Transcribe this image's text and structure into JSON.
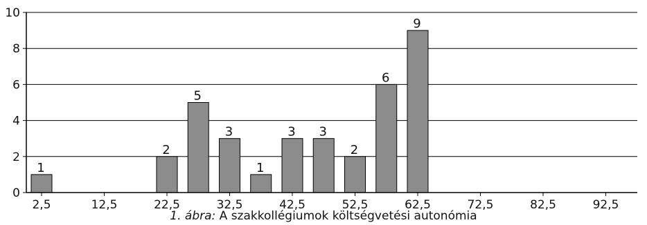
{
  "chart_data": {
    "type": "bar",
    "x_tick_labels": [
      "2,5",
      "12,5",
      "22,5",
      "32,5",
      "42,5",
      "52,5",
      "62,5",
      "72,5",
      "82,5",
      "92,5"
    ],
    "y_tick_labels": [
      "0",
      "2",
      "4",
      "6",
      "8",
      "10"
    ],
    "ylim": [
      0,
      10
    ],
    "grid": true,
    "bar_color": "#8c8c8c",
    "bars": [
      {
        "x": 2.5,
        "value": 1,
        "label": "1"
      },
      {
        "x": 22.5,
        "value": 2,
        "label": "2"
      },
      {
        "x": 27.5,
        "value": 5,
        "label": "5"
      },
      {
        "x": 32.5,
        "value": 3,
        "label": "3"
      },
      {
        "x": 37.5,
        "value": 1,
        "label": "1"
      },
      {
        "x": 42.5,
        "value": 3,
        "label": "3"
      },
      {
        "x": 47.5,
        "value": 3,
        "label": "3"
      },
      {
        "x": 52.5,
        "value": 2,
        "label": "2"
      },
      {
        "x": 57.5,
        "value": 6,
        "label": "6"
      },
      {
        "x": 62.5,
        "value": 9,
        "label": "9"
      }
    ]
  },
  "caption": {
    "figure_number": "1. ábra:",
    "text": " A szakkollégiumok költségvetési autonómia"
  }
}
